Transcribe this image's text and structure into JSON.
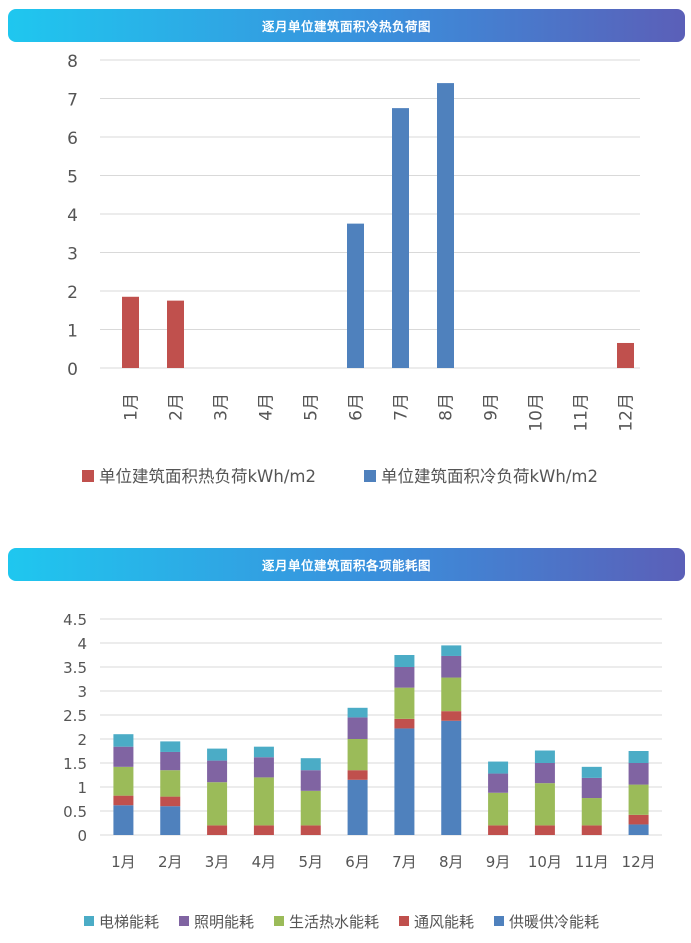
{
  "header1": {
    "title": "逐月单位建筑面积冷热负荷图"
  },
  "header2": {
    "title": "逐月单位建筑面积各项能耗图"
  },
  "chart_data": [
    {
      "type": "bar",
      "title": "逐月单位建筑面积冷热负荷图",
      "categories": [
        "1月",
        "2月",
        "3月",
        "4月",
        "5月",
        "6月",
        "7月",
        "8月",
        "9月",
        "10月",
        "11月",
        "12月"
      ],
      "series": [
        {
          "name": "单位建筑面积热负荷kWh/m2",
          "color": "#c0504d",
          "values": [
            1.85,
            1.75,
            0,
            0,
            0,
            0,
            0,
            0,
            0,
            0,
            0,
            0.65
          ]
        },
        {
          "name": "单位建筑面积冷负荷kWh/m2",
          "color": "#4f81bd",
          "values": [
            0,
            0,
            0,
            0,
            0,
            3.75,
            6.75,
            7.4,
            0,
            0,
            0,
            0
          ]
        }
      ],
      "yticks": [
        "0",
        "1",
        "2",
        "3",
        "4",
        "5",
        "6",
        "7",
        "8"
      ],
      "ylim": [
        0,
        8
      ],
      "grid": true,
      "legend": "bottom"
    },
    {
      "type": "bar",
      "stacked": true,
      "title": "逐月单位建筑面积各项能耗图",
      "categories": [
        "1月",
        "2月",
        "3月",
        "4月",
        "5月",
        "6月",
        "7月",
        "8月",
        "9月",
        "10月",
        "11月",
        "12月"
      ],
      "series": [
        {
          "name": "供暖供冷能耗",
          "color": "#4f81bd",
          "values": [
            0.62,
            0.6,
            0,
            0,
            0,
            1.15,
            2.22,
            2.38,
            0,
            0,
            0,
            0.22
          ]
        },
        {
          "name": "通风能耗",
          "color": "#c0504d",
          "values": [
            0.2,
            0.2,
            0.2,
            0.2,
            0.2,
            0.2,
            0.2,
            0.2,
            0.2,
            0.2,
            0.2,
            0.2
          ]
        },
        {
          "name": "生活热水能耗",
          "color": "#9bbb59",
          "values": [
            0.6,
            0.55,
            0.9,
            1.0,
            0.72,
            0.65,
            0.65,
            0.7,
            0.68,
            0.88,
            0.57,
            0.63
          ]
        },
        {
          "name": "照明能耗",
          "color": "#8064a2",
          "values": [
            0.42,
            0.38,
            0.45,
            0.42,
            0.43,
            0.45,
            0.43,
            0.45,
            0.4,
            0.42,
            0.42,
            0.45
          ]
        },
        {
          "name": "电梯能耗",
          "color": "#4bacc6",
          "values": [
            0.26,
            0.22,
            0.25,
            0.22,
            0.25,
            0.2,
            0.25,
            0.22,
            0.25,
            0.26,
            0.23,
            0.25
          ]
        }
      ],
      "legend_order": [
        "电梯能耗",
        "照明能耗",
        "生活热水能耗",
        "通风能耗",
        "供暖供冷能耗"
      ],
      "yticks": [
        "0",
        "0.5",
        "1",
        "1.5",
        "2",
        "2.5",
        "3",
        "3.5",
        "4",
        "4.5"
      ],
      "ylim": [
        0,
        4.5
      ],
      "grid": true,
      "legend": "bottom"
    }
  ]
}
